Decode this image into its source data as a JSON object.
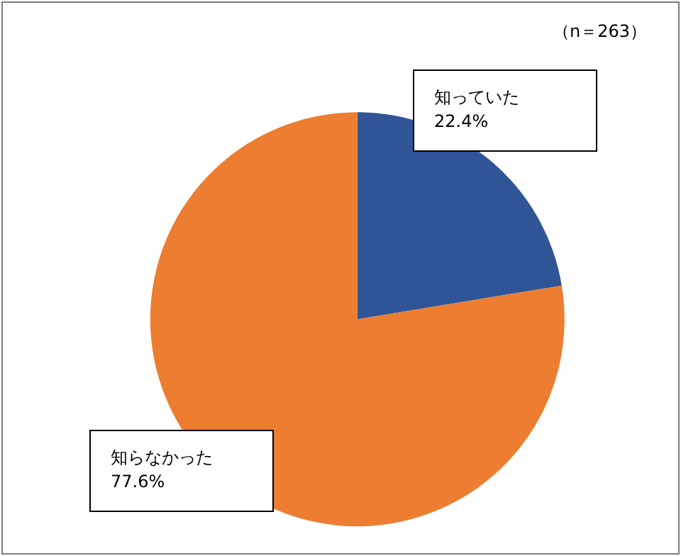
{
  "chart_data": {
    "type": "pie",
    "categories": [
      "知っていた",
      "知らなかった"
    ],
    "values": [
      22.4,
      77.6
    ],
    "colors": [
      "#2f5597",
      "#ed7d31"
    ],
    "value_labels": [
      "22.4%",
      "77.6%"
    ],
    "legend": false,
    "annotations": [
      "（n＝263）"
    ]
  }
}
